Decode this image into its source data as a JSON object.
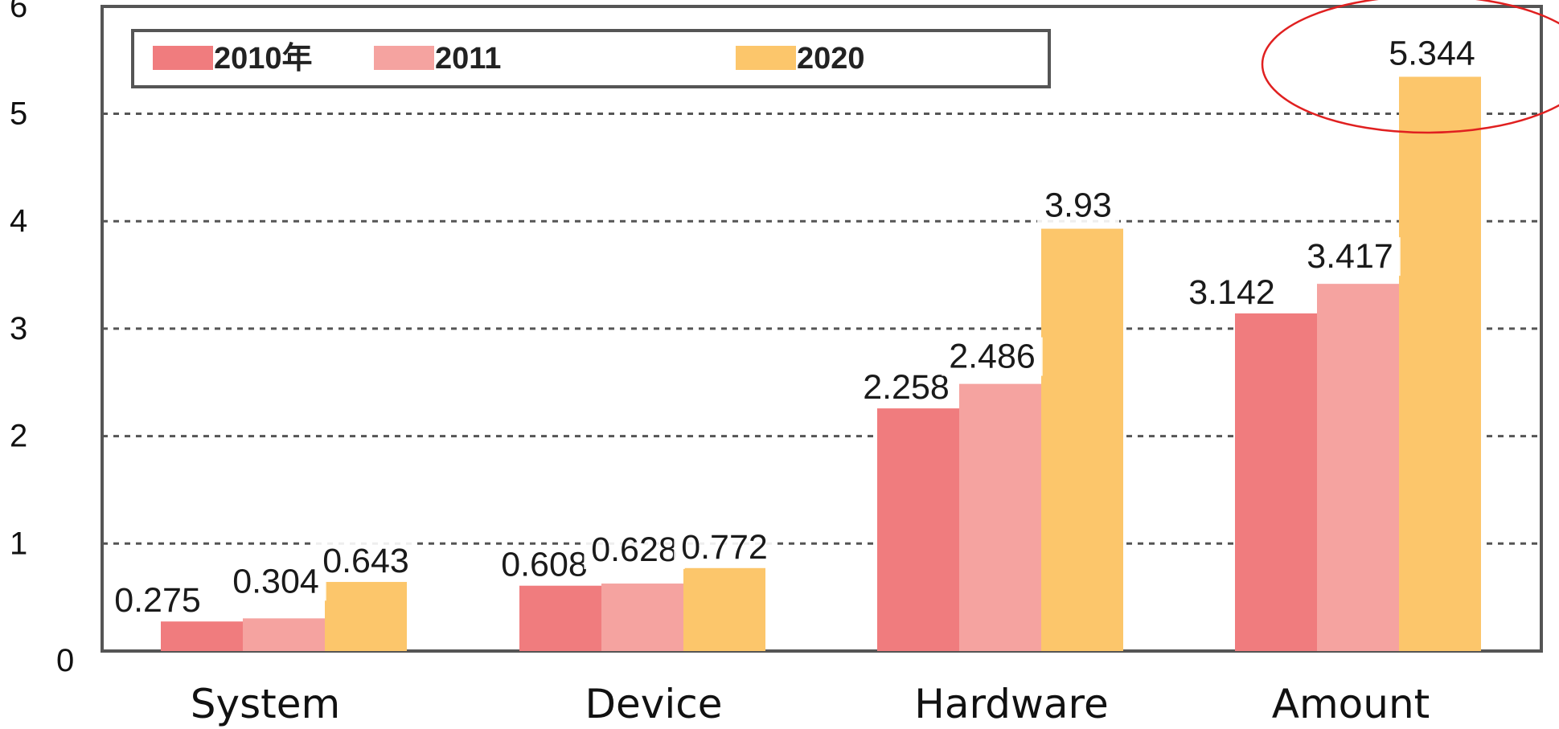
{
  "chart_data": {
    "type": "bar",
    "categories": [
      "System",
      "Device",
      "Hardware",
      "Amount"
    ],
    "series": [
      {
        "name": "2010年",
        "values": [
          0.275,
          0.608,
          2.258,
          3.142
        ],
        "color": "#f07c7e",
        "labels": [
          "0.275",
          "0.608",
          "2.258",
          "3.142"
        ]
      },
      {
        "name": "2011",
        "values": [
          0.304,
          0.628,
          2.486,
          3.417
        ],
        "color": "#f5a3a0",
        "labels": [
          "0.304",
          "0.628",
          "2.486",
          "3.417"
        ]
      },
      {
        "name": "2020",
        "values": [
          0.643,
          0.772,
          3.93,
          5.344
        ],
        "color": "#fcc66b",
        "labels": [
          "0.643",
          "0.772",
          "3.93",
          "5.344"
        ]
      }
    ],
    "yticks": [
      "0",
      "1",
      "2",
      "3",
      "4",
      "5",
      "6"
    ],
    "ylim": [
      0,
      6
    ],
    "grid": true,
    "legend_position": "top",
    "annotation": "red ellipse around 5.344"
  },
  "colors": {
    "axis": "#555555",
    "grid": "#555555",
    "annotation": "#e02020"
  }
}
